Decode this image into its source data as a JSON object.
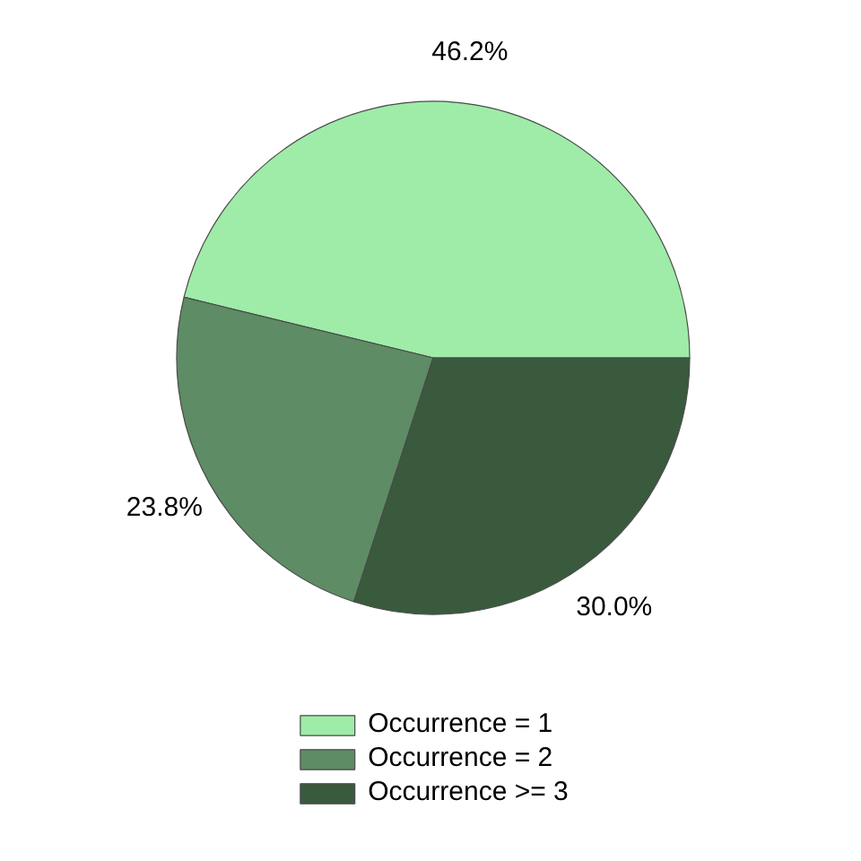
{
  "chart_data": {
    "type": "pie",
    "categories": [
      "Occurrence = 1",
      "Occurrence = 2",
      "Occurrence >= 3"
    ],
    "values": [
      46.2,
      23.8,
      30.0
    ],
    "colors": [
      "#9eeca8",
      "#5e8c64",
      "#3a5a3e"
    ],
    "value_labels": [
      "46.2%",
      "23.8%",
      "30.0%"
    ],
    "legend": "bottom"
  }
}
